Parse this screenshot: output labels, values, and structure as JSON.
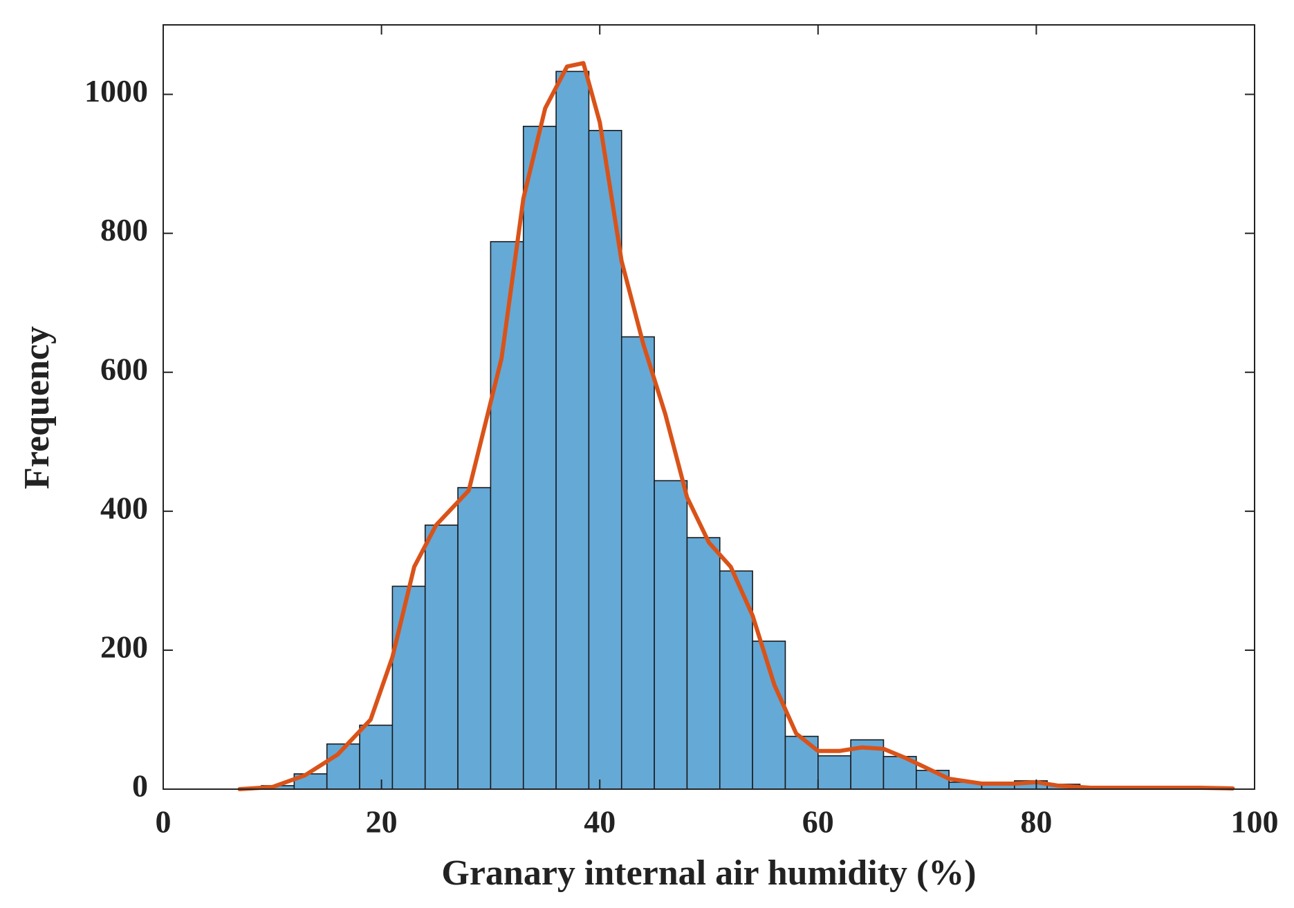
{
  "chart_data": {
    "type": "histogram",
    "xlabel": "Granary internal air humidity (%)",
    "ylabel": "Frequency",
    "bins": [
      9,
      12,
      15,
      18,
      21,
      24,
      27,
      30,
      33,
      36,
      39,
      42,
      45,
      48,
      51,
      54,
      57,
      60,
      63,
      66,
      69,
      72,
      75,
      78,
      81,
      84
    ],
    "values": [
      5,
      22,
      65,
      92,
      292,
      380,
      434,
      788,
      954,
      1033,
      948,
      651,
      444,
      362,
      314,
      213,
      76,
      48,
      71,
      47,
      27,
      10,
      8,
      12,
      7
    ],
    "color": "#65a9d7",
    "edgecolor": "#1a1a1a",
    "line": {
      "color": "#d95319",
      "x": [
        7,
        10,
        13,
        16,
        19,
        21,
        23,
        25,
        28,
        31,
        33,
        35,
        37,
        38.5,
        40,
        42,
        44,
        46,
        48,
        50,
        52,
        54,
        56,
        58,
        60,
        62,
        64,
        66,
        68,
        70,
        72,
        75,
        78,
        80,
        82,
        85,
        90,
        95,
        98
      ],
      "values": [
        0,
        3,
        20,
        50,
        100,
        190,
        320,
        380,
        430,
        620,
        850,
        980,
        1040,
        1045,
        960,
        760,
        640,
        540,
        420,
        355,
        320,
        250,
        150,
        80,
        55,
        55,
        60,
        58,
        45,
        30,
        15,
        8,
        8,
        10,
        5,
        2,
        2,
        2,
        1
      ]
    },
    "xlim": [
      0,
      100
    ],
    "xticks": [
      0,
      20,
      40,
      60,
      80,
      100
    ],
    "ylim": [
      0,
      1100
    ],
    "yticks": [
      0,
      200,
      400,
      600,
      800,
      1000
    ]
  }
}
